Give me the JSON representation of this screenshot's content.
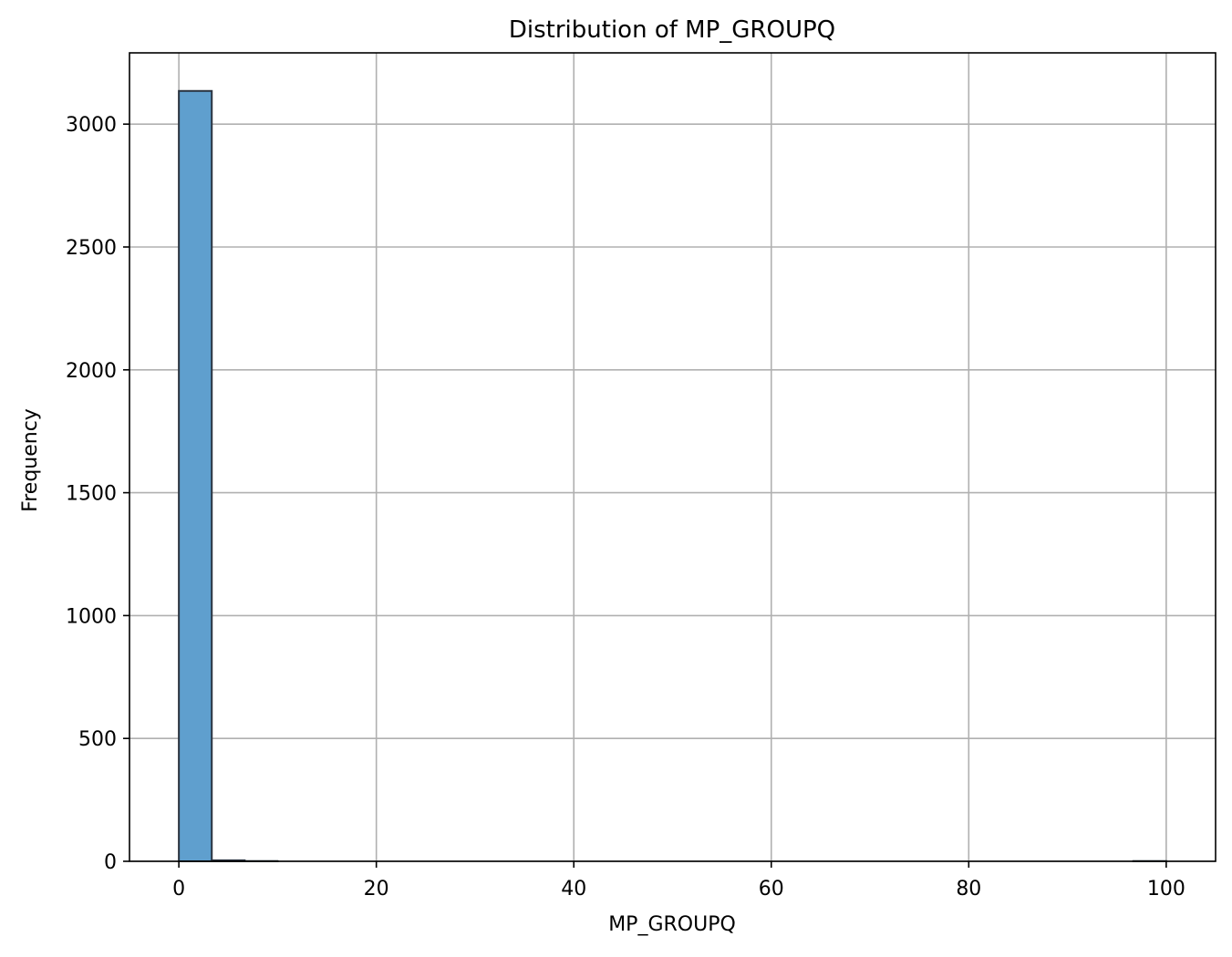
{
  "chart_data": {
    "type": "bar",
    "title": "Distribution of MP_GROUPQ",
    "xlabel": "MP_GROUPQ",
    "ylabel": "Frequency",
    "xlim": [
      -5,
      105
    ],
    "ylim": [
      0,
      3290
    ],
    "xticks": [
      0,
      20,
      40,
      60,
      80,
      100
    ],
    "yticks": [
      0,
      500,
      1000,
      1500,
      2000,
      2500,
      3000
    ],
    "grid": true,
    "bin_edges": [
      0,
      3.3333,
      6.6667,
      10,
      13.3333,
      16.6667,
      20,
      23.3333,
      26.6667,
      30,
      33.3333,
      36.6667,
      40,
      43.3333,
      46.6667,
      50,
      53.3333,
      56.6667,
      60,
      63.3333,
      66.6667,
      70,
      73.3333,
      76.6667,
      80,
      83.3333,
      86.6667,
      90,
      93.3333,
      96.6667,
      100
    ],
    "values": [
      3135,
      4,
      1,
      0,
      0,
      0,
      0,
      0,
      0,
      0,
      0,
      0,
      0,
      0,
      0,
      0,
      0,
      0,
      0,
      0,
      0,
      0,
      0,
      0,
      0,
      0,
      0,
      0,
      0,
      1
    ],
    "colors": {
      "bar_fill": "#5f9fce",
      "bar_edge": "#2b3440",
      "grid": "#b0b0b0"
    }
  }
}
